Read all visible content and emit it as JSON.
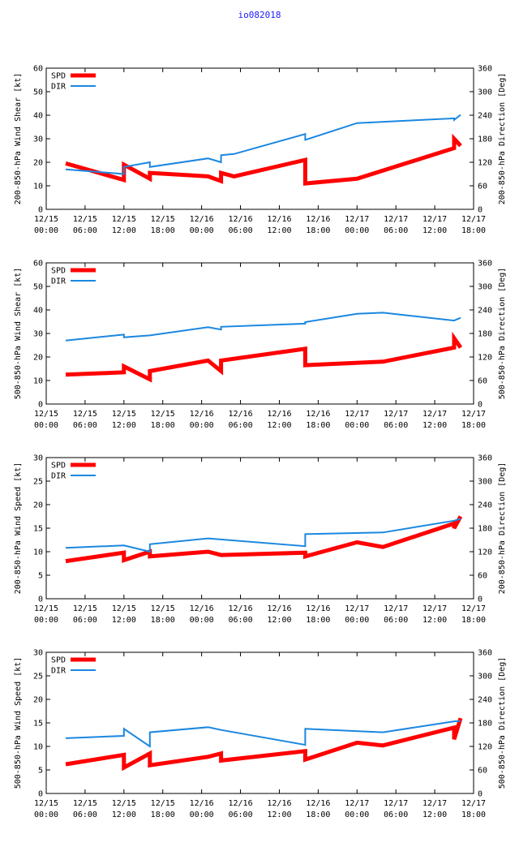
{
  "page": {
    "title": "io082018"
  },
  "colors": {
    "spd": "#ff0000",
    "dir": "#1b87e0",
    "title": "#1a1aff"
  },
  "chart_data": [
    {
      "type": "line",
      "ylabel": "200-850-hPa Wind Shear [kt]",
      "y2label": "200-850-hPa Direction [Deg]",
      "ylim": [
        0,
        60
      ],
      "yticks": [
        0,
        10,
        20,
        30,
        40,
        50,
        60
      ],
      "y2lim": [
        0,
        360
      ],
      "y2ticks": [
        0,
        60,
        120,
        180,
        240,
        300,
        360
      ],
      "xlim": [
        0,
        66
      ],
      "xticks": [
        0,
        6,
        12,
        18,
        24,
        30,
        36,
        42,
        48,
        54,
        60,
        66
      ],
      "xtick_labels": [
        [
          "12/15",
          "00:00"
        ],
        [
          "12/15",
          "06:00"
        ],
        [
          "12/15",
          "12:00"
        ],
        [
          "12/15",
          "18:00"
        ],
        [
          "12/16",
          "00:00"
        ],
        [
          "12/16",
          "06:00"
        ],
        [
          "12/16",
          "12:00"
        ],
        [
          "12/16",
          "18:00"
        ],
        [
          "12/17",
          "00:00"
        ],
        [
          "12/17",
          "06:00"
        ],
        [
          "12/17",
          "12:00"
        ],
        [
          "12/17",
          "18:00"
        ]
      ],
      "legend": "top-left",
      "series": [
        {
          "name": "SPD",
          "axis": "left",
          "x": [
            3,
            12,
            12,
            16,
            16,
            25,
            27,
            27,
            29,
            40,
            40,
            48,
            63,
            63,
            64
          ],
          "y": [
            19.5,
            12.5,
            19,
            13,
            15.5,
            14,
            12,
            15.5,
            14,
            21,
            11,
            13,
            26,
            30,
            27
          ]
        },
        {
          "name": "DIR",
          "axis": "right",
          "x": [
            3,
            12,
            12,
            16,
            16,
            25,
            27,
            27,
            29,
            40,
            40,
            48,
            63,
            63,
            64
          ],
          "y": [
            102,
            90,
            108,
            120,
            108,
            130,
            120,
            138,
            141,
            192,
            177,
            220,
            232,
            228,
            241
          ]
        }
      ]
    },
    {
      "type": "line",
      "ylabel": "500-850-hPa Wind Shear [kt]",
      "y2label": "500-850-hPa Direction [Deg]",
      "ylim": [
        0,
        60
      ],
      "yticks": [
        0,
        10,
        20,
        30,
        40,
        50,
        60
      ],
      "y2lim": [
        0,
        360
      ],
      "y2ticks": [
        0,
        60,
        120,
        180,
        240,
        300,
        360
      ],
      "xlim": [
        0,
        66
      ],
      "xticks": [
        0,
        6,
        12,
        18,
        24,
        30,
        36,
        42,
        48,
        54,
        60,
        66
      ],
      "xtick_labels": [
        [
          "12/15",
          "00:00"
        ],
        [
          "12/15",
          "06:00"
        ],
        [
          "12/15",
          "12:00"
        ],
        [
          "12/15",
          "18:00"
        ],
        [
          "12/16",
          "00:00"
        ],
        [
          "12/16",
          "06:00"
        ],
        [
          "12/16",
          "12:00"
        ],
        [
          "12/16",
          "18:00"
        ],
        [
          "12/17",
          "00:00"
        ],
        [
          "12/17",
          "06:00"
        ],
        [
          "12/17",
          "12:00"
        ],
        [
          "12/17",
          "18:00"
        ]
      ],
      "legend": "top-left",
      "series": [
        {
          "name": "SPD",
          "axis": "left",
          "x": [
            3,
            12,
            12,
            16,
            16,
            25,
            27,
            27,
            40,
            40,
            52,
            63,
            63,
            64
          ],
          "y": [
            12.5,
            13.5,
            16,
            10.5,
            14,
            18.5,
            14,
            18.5,
            23.5,
            16.5,
            18,
            24,
            28,
            24
          ]
        },
        {
          "name": "DIR",
          "axis": "right",
          "x": [
            3,
            12,
            12,
            16,
            25,
            27,
            27,
            40,
            40,
            48,
            52,
            63,
            64
          ],
          "y": [
            162,
            177,
            170,
            175,
            196,
            190,
            197,
            205,
            209,
            230,
            233,
            213,
            220
          ]
        }
      ]
    },
    {
      "type": "line",
      "ylabel": "200-850-hPa Wind Speed [kt]",
      "y2label": "200-850-hPa Direction [Deg]",
      "ylim": [
        0,
        30
      ],
      "yticks": [
        0,
        5,
        10,
        15,
        20,
        25,
        30
      ],
      "y2lim": [
        0,
        360
      ],
      "y2ticks": [
        0,
        60,
        120,
        180,
        240,
        300,
        360
      ],
      "xlim": [
        0,
        66
      ],
      "xticks": [
        0,
        6,
        12,
        18,
        24,
        30,
        36,
        42,
        48,
        54,
        60,
        66
      ],
      "xtick_labels": [
        [
          "12/15",
          "00:00"
        ],
        [
          "12/15",
          "06:00"
        ],
        [
          "12/15",
          "12:00"
        ],
        [
          "12/15",
          "18:00"
        ],
        [
          "12/16",
          "00:00"
        ],
        [
          "12/16",
          "06:00"
        ],
        [
          "12/16",
          "12:00"
        ],
        [
          "12/16",
          "18:00"
        ],
        [
          "12/17",
          "00:00"
        ],
        [
          "12/17",
          "06:00"
        ],
        [
          "12/17",
          "12:00"
        ],
        [
          "12/17",
          "18:00"
        ]
      ],
      "legend": "top-left",
      "series": [
        {
          "name": "SPD",
          "axis": "left",
          "x": [
            3,
            12,
            12,
            16,
            16,
            25,
            27,
            27,
            40,
            40,
            48,
            52,
            63,
            63,
            64
          ],
          "y": [
            8,
            9.8,
            8.2,
            10,
            9,
            10,
            9.3,
            9.3,
            9.8,
            9,
            12,
            11,
            16,
            15,
            17.5
          ]
        },
        {
          "name": "DIR",
          "axis": "right",
          "x": [
            3,
            12,
            16,
            16,
            25,
            40,
            40,
            52,
            63,
            64
          ],
          "y": [
            130,
            136,
            120,
            139,
            154,
            134,
            165,
            169,
            199,
            204
          ]
        }
      ]
    },
    {
      "type": "line",
      "ylabel": "500-850-hPa Wind Speed [kt]",
      "y2label": "500-850-hPa Direction [Deg]",
      "ylim": [
        0,
        30
      ],
      "yticks": [
        0,
        5,
        10,
        15,
        20,
        25,
        30
      ],
      "y2lim": [
        0,
        360
      ],
      "y2ticks": [
        0,
        60,
        120,
        180,
        240,
        300,
        360
      ],
      "xlim": [
        0,
        66
      ],
      "xticks": [
        0,
        6,
        12,
        18,
        24,
        30,
        36,
        42,
        48,
        54,
        60,
        66
      ],
      "xtick_labels": [
        [
          "12/15",
          "00:00"
        ],
        [
          "12/15",
          "06:00"
        ],
        [
          "12/15",
          "12:00"
        ],
        [
          "12/15",
          "18:00"
        ],
        [
          "12/16",
          "00:00"
        ],
        [
          "12/16",
          "06:00"
        ],
        [
          "12/16",
          "12:00"
        ],
        [
          "12/16",
          "18:00"
        ],
        [
          "12/17",
          "00:00"
        ],
        [
          "12/17",
          "06:00"
        ],
        [
          "12/17",
          "12:00"
        ],
        [
          "12/17",
          "18:00"
        ]
      ],
      "legend": "top-left",
      "series": [
        {
          "name": "SPD",
          "axis": "left",
          "x": [
            3,
            12,
            12,
            16,
            16,
            25,
            27,
            27,
            40,
            40,
            48,
            52,
            63,
            63,
            64
          ],
          "y": [
            6.2,
            8.2,
            5.5,
            8.5,
            6,
            7.8,
            8.5,
            7,
            9,
            7.2,
            10.8,
            10.2,
            14,
            11.5,
            16
          ]
        },
        {
          "name": "DIR",
          "axis": "right",
          "x": [
            3,
            12,
            12,
            16,
            16,
            25,
            27,
            40,
            40,
            52,
            63,
            64
          ],
          "y": [
            141,
            147,
            165,
            120,
            156,
            169,
            162,
            124,
            165,
            156,
            184,
            185
          ]
        }
      ]
    }
  ]
}
